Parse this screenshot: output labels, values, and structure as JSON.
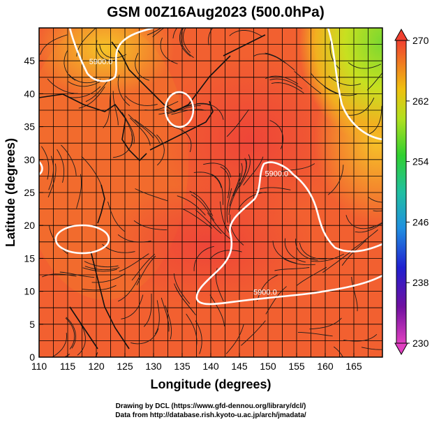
{
  "chart_data": {
    "type": "heatmap",
    "title": "GSM 00Z16Aug2023 (500.0hPa)",
    "xlabel": "Longitude (degrees)",
    "ylabel": "Latitude  (degrees)",
    "xlim": [
      110,
      170
    ],
    "ylim": [
      0,
      50
    ],
    "x_ticks": [
      "110",
      "115",
      "120",
      "125",
      "130",
      "135",
      "140",
      "145",
      "150",
      "155",
      "160",
      "165"
    ],
    "y_ticks": [
      "0",
      "5",
      "10",
      "15",
      "20",
      "25",
      "30",
      "35",
      "40",
      "45"
    ],
    "colorbar": {
      "min": 230,
      "max": 270,
      "ticks": [
        "230",
        "238",
        "246",
        "254",
        "262",
        "270"
      ],
      "colors": [
        "#e040c0",
        "#6010a0",
        "#2020d0",
        "#20a0e0",
        "#20c090",
        "#30d030",
        "#c0e020",
        "#f0c010",
        "#f08020",
        "#f04030"
      ]
    },
    "contours": [
      {
        "label": "5900.0",
        "lon": 149.5,
        "lat": 9.5
      },
      {
        "label": "5900.0",
        "lon": 151.5,
        "lat": 27.5
      },
      {
        "label": "5900.0",
        "lon": 120.8,
        "lat": 44.5
      }
    ],
    "field_colors": {
      "hot": "#f04b3a",
      "warm": "#f36a2a",
      "mid": "#f7a020",
      "yellow": "#e8e020",
      "green": "#7ad830"
    }
  },
  "credits": {
    "line1": "Drawing by DCL (https://www.gfd-dennou.org/library/dcl/)",
    "line2": "Data from http://database.rish.kyoto-u.ac.jp/arch/jmadata/"
  }
}
